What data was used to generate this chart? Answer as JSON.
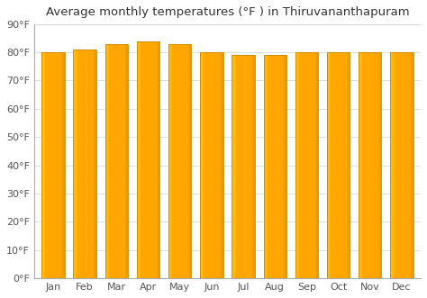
{
  "title": "Average monthly temperatures (°F ) in Thiruvananthapuram",
  "months": [
    "Jan",
    "Feb",
    "Mar",
    "Apr",
    "May",
    "Jun",
    "Jul",
    "Aug",
    "Sep",
    "Oct",
    "Nov",
    "Dec"
  ],
  "values": [
    80,
    81,
    83,
    84,
    83,
    80,
    79,
    79,
    80,
    80,
    80,
    80
  ],
  "bar_color": "#FFA500",
  "bar_edge_color": "#CC8800",
  "background_color": "#ffffff",
  "plot_bg_color": "#f5f5f5",
  "ylim": [
    0,
    90
  ],
  "yticks": [
    0,
    10,
    20,
    30,
    40,
    50,
    60,
    70,
    80,
    90
  ],
  "ytick_labels": [
    "0°F",
    "10°F",
    "20°F",
    "30°F",
    "40°F",
    "50°F",
    "60°F",
    "70°F",
    "80°F",
    "90°F"
  ],
  "grid_color": "#dddddd",
  "title_fontsize": 9.5,
  "tick_fontsize": 8,
  "bar_width": 0.72
}
